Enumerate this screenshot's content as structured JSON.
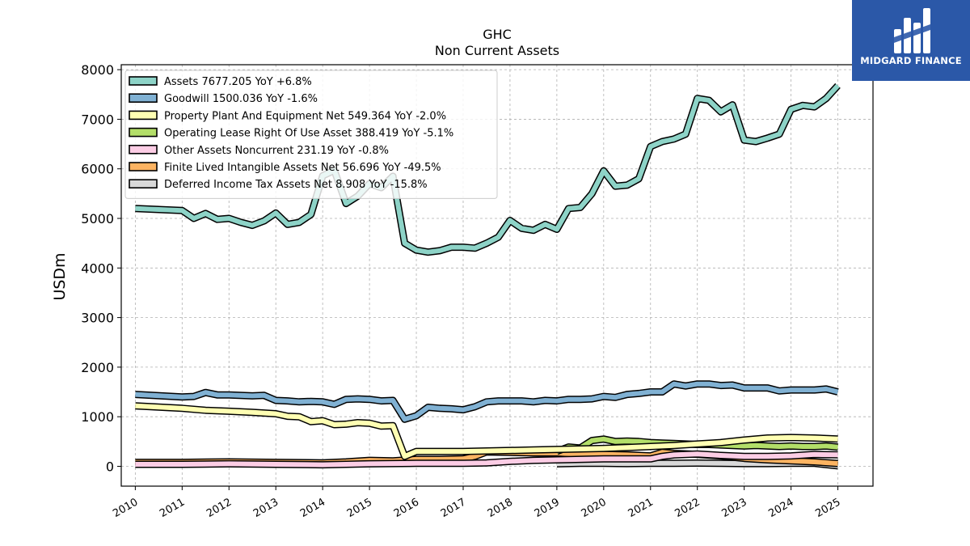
{
  "brand": {
    "name": "MIDGARD FINANCE",
    "color": "#2b58a8"
  },
  "chart_data": {
    "type": "line",
    "title": "GHC",
    "subtitle": "Non Current  Assets",
    "xlabel": "",
    "ylabel": "USDm",
    "ylim": [
      -400,
      8100
    ],
    "yticks": [
      0,
      1000,
      2000,
      3000,
      4000,
      5000,
      6000,
      7000,
      8000
    ],
    "xticks": [
      "2010",
      "2011",
      "2012",
      "2013",
      "2014",
      "2015",
      "2016",
      "2017",
      "2018",
      "2019",
      "2020",
      "2021",
      "2022",
      "2023",
      "2024",
      "2025"
    ],
    "grid": true,
    "legend_position": "top-left",
    "series": [
      {
        "name": "Assets",
        "label": "Assets  7677.205 YoY +6.8%",
        "color": "#8dd3c7",
        "x": [
          2010.0,
          2011.0,
          2011.25,
          2011.5,
          2011.75,
          2012.0,
          2012.25,
          2012.5,
          2012.75,
          2013.0,
          2013.25,
          2013.5,
          2013.75,
          2014.0,
          2014.25,
          2014.5,
          2014.75,
          2015.0,
          2015.25,
          2015.5,
          2015.75,
          2016.0,
          2016.25,
          2016.5,
          2016.75,
          2017.0,
          2017.25,
          2017.5,
          2017.75,
          2018.0,
          2018.25,
          2018.5,
          2018.75,
          2019.0,
          2019.25,
          2019.5,
          2019.75,
          2020.0,
          2020.25,
          2020.5,
          2020.75,
          2021.0,
          2021.25,
          2021.5,
          2021.75,
          2022.0,
          2022.25,
          2022.5,
          2022.75,
          2023.0,
          2023.25,
          2023.5,
          2023.75,
          2024.0,
          2024.25,
          2024.5,
          2024.75,
          2025.0
        ],
        "y": [
          5200,
          5160,
          5000,
          5100,
          4980,
          5000,
          4920,
          4860,
          4950,
          5110,
          4880,
          4920,
          5080,
          5860,
          5970,
          5300,
          5450,
          5700,
          5620,
          5850,
          4500,
          4360,
          4320,
          4350,
          4420,
          4420,
          4400,
          4500,
          4620,
          4960,
          4800,
          4760,
          4880,
          4780,
          5200,
          5220,
          5500,
          5960,
          5650,
          5670,
          5800,
          6450,
          6550,
          6600,
          6700,
          7420,
          7380,
          7150,
          7290,
          6580,
          6550,
          6620,
          6700,
          7200,
          7280,
          7250,
          7420,
          7677
        ]
      },
      {
        "name": "Goodwill",
        "label": "Goodwill  1500.036 YoY -1.6%",
        "color": "#80b1d3",
        "x": [
          2010.0,
          2011.0,
          2011.25,
          2011.5,
          2011.75,
          2012.0,
          2012.5,
          2012.75,
          2013.0,
          2013.25,
          2013.5,
          2013.75,
          2014.0,
          2014.25,
          2014.5,
          2014.75,
          2015.0,
          2015.25,
          2015.5,
          2015.75,
          2016.0,
          2016.25,
          2016.5,
          2016.75,
          2017.0,
          2017.25,
          2017.5,
          2017.75,
          2018.0,
          2018.25,
          2018.5,
          2018.75,
          2019.0,
          2019.25,
          2019.5,
          2019.75,
          2020.0,
          2020.25,
          2020.5,
          2020.75,
          2021.0,
          2021.25,
          2021.5,
          2021.75,
          2022.0,
          2022.25,
          2022.5,
          2022.75,
          2023.0,
          2023.25,
          2023.5,
          2023.75,
          2024.0,
          2024.25,
          2024.5,
          2024.75,
          2025.0
        ],
        "y": [
          1450,
          1400,
          1410,
          1490,
          1440,
          1440,
          1420,
          1430,
          1330,
          1320,
          1300,
          1310,
          1300,
          1250,
          1350,
          1360,
          1350,
          1320,
          1330,
          950,
          1020,
          1190,
          1170,
          1160,
          1140,
          1200,
          1300,
          1320,
          1320,
          1320,
          1300,
          1330,
          1320,
          1350,
          1350,
          1360,
          1410,
          1390,
          1450,
          1470,
          1500,
          1500,
          1660,
          1620,
          1660,
          1660,
          1630,
          1640,
          1580,
          1580,
          1580,
          1520,
          1540,
          1540,
          1540,
          1560,
          1500
        ]
      },
      {
        "name": "Property Plant And Equipment Net",
        "label": "Property Plant And Equipment Net  549.364 YoY -2.0%",
        "color": "#ffffb3",
        "x": [
          2010.0,
          2011.0,
          2011.5,
          2012.0,
          2012.5,
          2013.0,
          2013.25,
          2013.5,
          2013.75,
          2014.0,
          2014.25,
          2014.5,
          2014.75,
          2015.0,
          2015.25,
          2015.5,
          2015.75,
          2016.0,
          2016.5,
          2017.0,
          2017.5,
          2018.0,
          2018.5,
          2019.0,
          2019.5,
          2020.0,
          2020.5,
          2021.0,
          2021.5,
          2022.0,
          2022.5,
          2023.0,
          2023.5,
          2024.0,
          2024.5,
          2025.0
        ],
        "y": [
          1220,
          1170,
          1130,
          1110,
          1090,
          1060,
          1010,
          1000,
          900,
          920,
          840,
          850,
          880,
          870,
          810,
          820,
          200,
          300,
          300,
          300,
          310,
          320,
          330,
          340,
          350,
          360,
          380,
          400,
          420,
          450,
          480,
          530,
          570,
          580,
          570,
          549
        ]
      },
      {
        "name": "Operating Lease Right Of Use Asset",
        "label": "Operating Lease Right Of Use Asset  388.419 YoY -5.1%",
        "color": "#b3de69",
        "x": [
          2019.0,
          2019.25,
          2019.5,
          2019.75,
          2020.0,
          2020.25,
          2020.5,
          2020.75,
          2021.0,
          2021.25,
          2021.5,
          2021.75,
          2022.0,
          2022.25,
          2022.5,
          2022.75,
          2023.0,
          2023.25,
          2023.5,
          2023.75,
          2024.0,
          2024.25,
          2024.5,
          2024.75,
          2025.0
        ],
        "y": [
          300,
          390,
          370,
          520,
          550,
          500,
          510,
          500,
          480,
          470,
          460,
          450,
          440,
          440,
          430,
          420,
          410,
          420,
          410,
          400,
          410,
          400,
          400,
          410,
          388
        ]
      },
      {
        "name": "Other Assets Noncurrent",
        "label": "Other Assets Noncurrent  231.19 YoY -0.8%",
        "color": "#fccde5",
        "x": [
          2010.0,
          2011.0,
          2012.0,
          2013.0,
          2014.0,
          2015.0,
          2016.0,
          2017.0,
          2017.5,
          2018.0,
          2018.5,
          2019.0,
          2019.5,
          2020.0,
          2020.5,
          2021.0,
          2021.25,
          2021.5,
          2022.0,
          2022.5,
          2023.0,
          2023.5,
          2024.0,
          2024.5,
          2025.0
        ],
        "y": [
          40,
          40,
          50,
          40,
          30,
          50,
          60,
          60,
          70,
          100,
          120,
          130,
          140,
          150,
          150,
          150,
          200,
          230,
          250,
          220,
          200,
          200,
          210,
          240,
          231
        ]
      },
      {
        "name": "Finite Lived Intangible Assets Net",
        "label": "Finite Lived Intangible Assets Net  56.696 YoY -49.5%",
        "color": "#fdb462",
        "x": [
          2010.0,
          2011.0,
          2012.0,
          2013.0,
          2014.0,
          2014.5,
          2015.0,
          2015.5,
          2016.0,
          2016.5,
          2017.0,
          2017.25,
          2017.5,
          2018.0,
          2018.5,
          2019.0,
          2019.5,
          2020.0,
          2020.5,
          2021.0,
          2021.25,
          2021.5,
          2022.0,
          2022.5,
          2023.0,
          2023.5,
          2024.0,
          2024.5,
          2025.0
        ],
        "y": [
          80,
          80,
          90,
          80,
          70,
          90,
          120,
          110,
          140,
          140,
          150,
          200,
          290,
          280,
          270,
          270,
          240,
          240,
          230,
          210,
          280,
          260,
          240,
          210,
          160,
          130,
          110,
          90,
          57
        ]
      },
      {
        "name": "Deferred Income Tax Assets Net",
        "label": "Deferred Income Tax Assets Net  8.908 YoY -15.8%",
        "color": "#d9d9d9",
        "x": [
          2019.0,
          2019.5,
          2020.0,
          2020.5,
          2021.0,
          2021.5,
          2022.0,
          2022.5,
          2023.0,
          2023.5,
          2024.0,
          2024.5,
          2025.0
        ],
        "y": [
          50,
          60,
          60,
          55,
          60,
          60,
          65,
          60,
          55,
          55,
          60,
          60,
          9
        ]
      }
    ]
  }
}
